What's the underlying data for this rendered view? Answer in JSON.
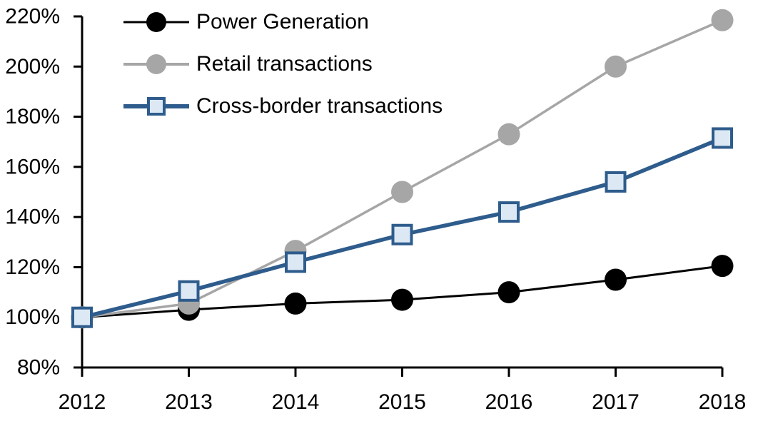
{
  "chart_data": {
    "type": "line",
    "title": "",
    "xlabel": "",
    "ylabel": "",
    "x_labels": [
      "2012",
      "2013",
      "2014",
      "2015",
      "2016",
      "2017",
      "2018"
    ],
    "y_axis": {
      "min": 80,
      "max": 220,
      "step": 20,
      "unit": "%",
      "tick_labels": [
        "80%",
        "100%",
        "120%",
        "140%",
        "160%",
        "180%",
        "200%",
        "220%"
      ]
    },
    "grid": false,
    "legend_position": "top-left-inside",
    "series": [
      {
        "name": "Power Generation",
        "values": [
          100,
          103,
          105.5,
          107,
          110,
          115,
          120.5
        ],
        "color": "#000000",
        "marker": "circle",
        "marker_fill": "#000000",
        "line_width": 3
      },
      {
        "name": "Retail transactions",
        "values": [
          100,
          105.5,
          126.5,
          150,
          173,
          200,
          218.5
        ],
        "color": "#A6A6A6",
        "marker": "circle",
        "marker_fill": "#A6A6A6",
        "line_width": 3.5
      },
      {
        "name": "Cross-border transactions",
        "values": [
          100,
          110.5,
          122,
          133,
          142,
          154,
          171.5
        ],
        "color": "#2E5C8C",
        "marker": "square",
        "marker_fill": "#DCE9F5",
        "line_width": 5.5
      }
    ],
    "axis_color": "#000000",
    "label_color": "#000000"
  }
}
